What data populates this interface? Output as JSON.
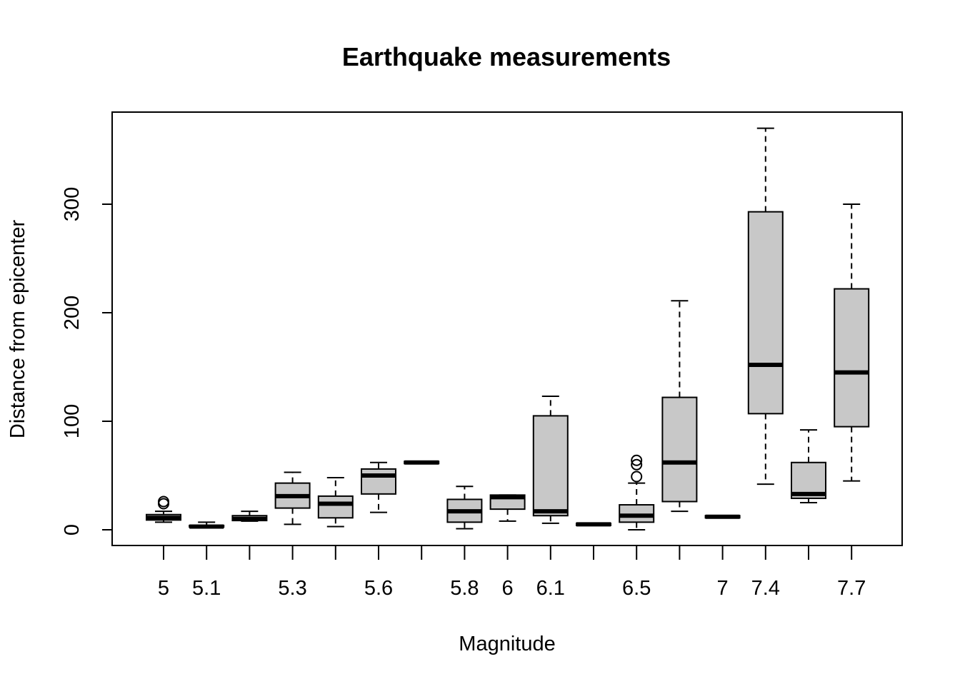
{
  "chart_data": {
    "type": "box",
    "title": "Earthquake measurements",
    "xlabel": "Magnitude",
    "ylabel": "Distance from epicenter",
    "ylim": [
      -15,
      385
    ],
    "y_ticks": [
      0,
      100,
      200,
      300
    ],
    "x_tick_labels": [
      "5",
      "5.1",
      "",
      "5.3",
      "",
      "5.6",
      "",
      "5.8",
      "6",
      "6.1",
      "",
      "6.5",
      "",
      "7",
      "7.4",
      "",
      "7.7"
    ],
    "box_fill": "#c8c8c8",
    "boxes": [
      {
        "whisker_low": 7,
        "q1": 9,
        "median": 11,
        "q3": 14,
        "whisker_high": 17,
        "outliers": [
          24,
          26
        ]
      },
      {
        "whisker_low": 2,
        "q1": 2.5,
        "median": 3,
        "q3": 4,
        "whisker_high": 7,
        "outliers": []
      },
      {
        "whisker_low": 8,
        "q1": 8.5,
        "median": 10,
        "q3": 13,
        "whisker_high": 17,
        "outliers": []
      },
      {
        "whisker_low": 5,
        "q1": 20,
        "median": 31,
        "q3": 43,
        "whisker_high": 53,
        "outliers": []
      },
      {
        "whisker_low": 3,
        "q1": 11,
        "median": 24,
        "q3": 31,
        "whisker_high": 48,
        "outliers": []
      },
      {
        "whisker_low": 16,
        "q1": 33,
        "median": 50,
        "q3": 56,
        "whisker_high": 62,
        "outliers": []
      },
      {
        "whisker_low": 61,
        "q1": 61,
        "median": 62,
        "q3": 63,
        "whisker_high": 63,
        "outliers": []
      },
      {
        "whisker_low": 1,
        "q1": 7,
        "median": 17,
        "q3": 28,
        "whisker_high": 40,
        "outliers": []
      },
      {
        "whisker_low": 8,
        "q1": 19,
        "median": 30,
        "q3": 32,
        "whisker_high": 32,
        "outliers": []
      },
      {
        "whisker_low": 6,
        "q1": 13,
        "median": 17,
        "q3": 105,
        "whisker_high": 123,
        "outliers": []
      },
      {
        "whisker_low": 4,
        "q1": 4,
        "median": 5,
        "q3": 6,
        "whisker_high": 6,
        "outliers": []
      },
      {
        "whisker_low": 0,
        "q1": 7,
        "median": 13,
        "q3": 23,
        "whisker_high": 43,
        "outliers": [
          49,
          60,
          64
        ]
      },
      {
        "whisker_low": 17,
        "q1": 26,
        "median": 62,
        "q3": 122,
        "whisker_high": 211,
        "outliers": []
      },
      {
        "whisker_low": 11,
        "q1": 11,
        "median": 12,
        "q3": 13,
        "whisker_high": 13,
        "outliers": []
      },
      {
        "whisker_low": 42,
        "q1": 107,
        "median": 152,
        "q3": 293,
        "whisker_high": 370,
        "outliers": []
      },
      {
        "whisker_low": 25,
        "q1": 29,
        "median": 33,
        "q3": 62,
        "whisker_high": 92,
        "outliers": []
      },
      {
        "whisker_low": 45,
        "q1": 95,
        "median": 145,
        "q3": 222,
        "whisker_high": 300,
        "outliers": []
      }
    ]
  }
}
